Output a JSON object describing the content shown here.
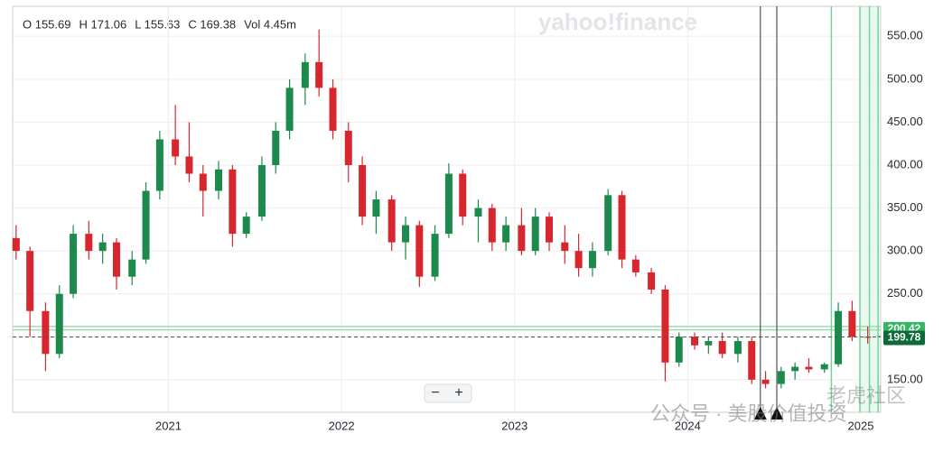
{
  "header": {
    "ohlc": [
      "O 155.69",
      "H 171.06",
      "L 155.63",
      "C 169.38",
      "Vol 4.45m"
    ]
  },
  "brand": "yahoo!finance",
  "watermarks": [
    "公众号 · 美股价值投资",
    "老虎社区"
  ],
  "controls": {
    "zoom_out": "−",
    "zoom_in": "+"
  },
  "chart_data": {
    "type": "candlestick",
    "x": [
      2020.12,
      2020.2,
      2020.29,
      2020.37,
      2020.45,
      2020.54,
      2020.62,
      2020.7,
      2020.79,
      2020.87,
      2020.95,
      2021.04,
      2021.12,
      2021.2,
      2021.29,
      2021.37,
      2021.45,
      2021.54,
      2021.62,
      2021.7,
      2021.79,
      2021.87,
      2021.95,
      2022.04,
      2022.12,
      2022.2,
      2022.29,
      2022.37,
      2022.45,
      2022.54,
      2022.62,
      2022.7,
      2022.79,
      2022.87,
      2022.95,
      2023.04,
      2023.12,
      2023.2,
      2023.29,
      2023.37,
      2023.45,
      2023.54,
      2023.62,
      2023.7,
      2023.79,
      2023.87,
      2023.95,
      2024.04,
      2024.12,
      2024.2,
      2024.29,
      2024.37,
      2024.45,
      2024.54,
      2024.62,
      2024.7,
      2024.79,
      2024.87,
      2024.95,
      2025.04
    ],
    "open": [
      315,
      300,
      230,
      180,
      250,
      320,
      300,
      310,
      270,
      290,
      370,
      430,
      410,
      390,
      370,
      395,
      320,
      340,
      400,
      440,
      490,
      520,
      490,
      440,
      400,
      340,
      360,
      310,
      330,
      270,
      320,
      390,
      340,
      350,
      310,
      330,
      300,
      340,
      310,
      300,
      280,
      300,
      365,
      290,
      275,
      255,
      170,
      200,
      190,
      195,
      180,
      195,
      150,
      145,
      160,
      165,
      162,
      168,
      230,
      200
    ],
    "high": [
      330,
      305,
      240,
      260,
      330,
      335,
      320,
      315,
      300,
      380,
      440,
      470,
      450,
      400,
      405,
      400,
      345,
      410,
      450,
      500,
      530,
      558,
      500,
      450,
      410,
      370,
      365,
      340,
      335,
      330,
      402,
      395,
      360,
      355,
      340,
      350,
      350,
      345,
      330,
      320,
      310,
      372,
      370,
      295,
      280,
      260,
      205,
      205,
      200,
      205,
      200,
      200,
      160,
      165,
      170,
      175,
      170,
      240,
      242,
      212
    ],
    "low": [
      290,
      200,
      160,
      175,
      245,
      290,
      285,
      255,
      260,
      285,
      360,
      400,
      380,
      340,
      360,
      305,
      315,
      335,
      390,
      430,
      470,
      480,
      430,
      380,
      330,
      320,
      300,
      290,
      258,
      265,
      315,
      330,
      310,
      300,
      300,
      295,
      295,
      300,
      285,
      270,
      270,
      295,
      280,
      270,
      250,
      148,
      165,
      185,
      180,
      175,
      170,
      145,
      140,
      140,
      150,
      158,
      158,
      165,
      195,
      192
    ],
    "close": [
      300,
      230,
      180,
      250,
      320,
      300,
      310,
      270,
      290,
      370,
      430,
      410,
      390,
      370,
      395,
      320,
      340,
      400,
      440,
      490,
      520,
      490,
      440,
      400,
      340,
      360,
      310,
      330,
      270,
      320,
      390,
      340,
      350,
      310,
      330,
      300,
      340,
      310,
      300,
      280,
      300,
      365,
      290,
      275,
      255,
      170,
      200,
      190,
      195,
      180,
      195,
      150,
      145,
      160,
      165,
      162,
      168,
      230,
      200,
      199.78
    ],
    "colors": {
      "up": "#1b8a4c",
      "down": "#d8262e"
    },
    "xlim": [
      2020.1,
      2025.115
    ],
    "xticks": [
      2021,
      2022,
      2023,
      2024,
      2025
    ],
    "ylim": [
      112,
      585
    ],
    "yticks": [
      {
        "value": 150,
        "label": "150.00"
      },
      {
        "value": 200,
        "label": "200.00"
      },
      {
        "value": 250,
        "label": "250.00"
      },
      {
        "value": 300,
        "label": "300.00"
      },
      {
        "value": 350,
        "label": "350.00"
      },
      {
        "value": 400,
        "label": "400.00"
      },
      {
        "value": 450,
        "label": "450.00"
      },
      {
        "value": 500,
        "label": "500.00"
      },
      {
        "value": 550,
        "label": "550.00"
      }
    ],
    "grid": true,
    "price_labels": [
      {
        "value": 200.42,
        "label": "200.42",
        "color": "#34b865"
      },
      {
        "value": 199.78,
        "label": "199.78",
        "color": "#0b6b37"
      }
    ],
    "hlines": {
      "values": [
        212,
        208
      ],
      "color": "#9fdcb5"
    },
    "vlines_black": [
      2024.42,
      2024.515
    ],
    "vlines_green": [
      2024.83,
      2024.995,
      2025.05,
      2025.1
    ],
    "shade_x": [
      2024.995,
      2025.1
    ]
  }
}
